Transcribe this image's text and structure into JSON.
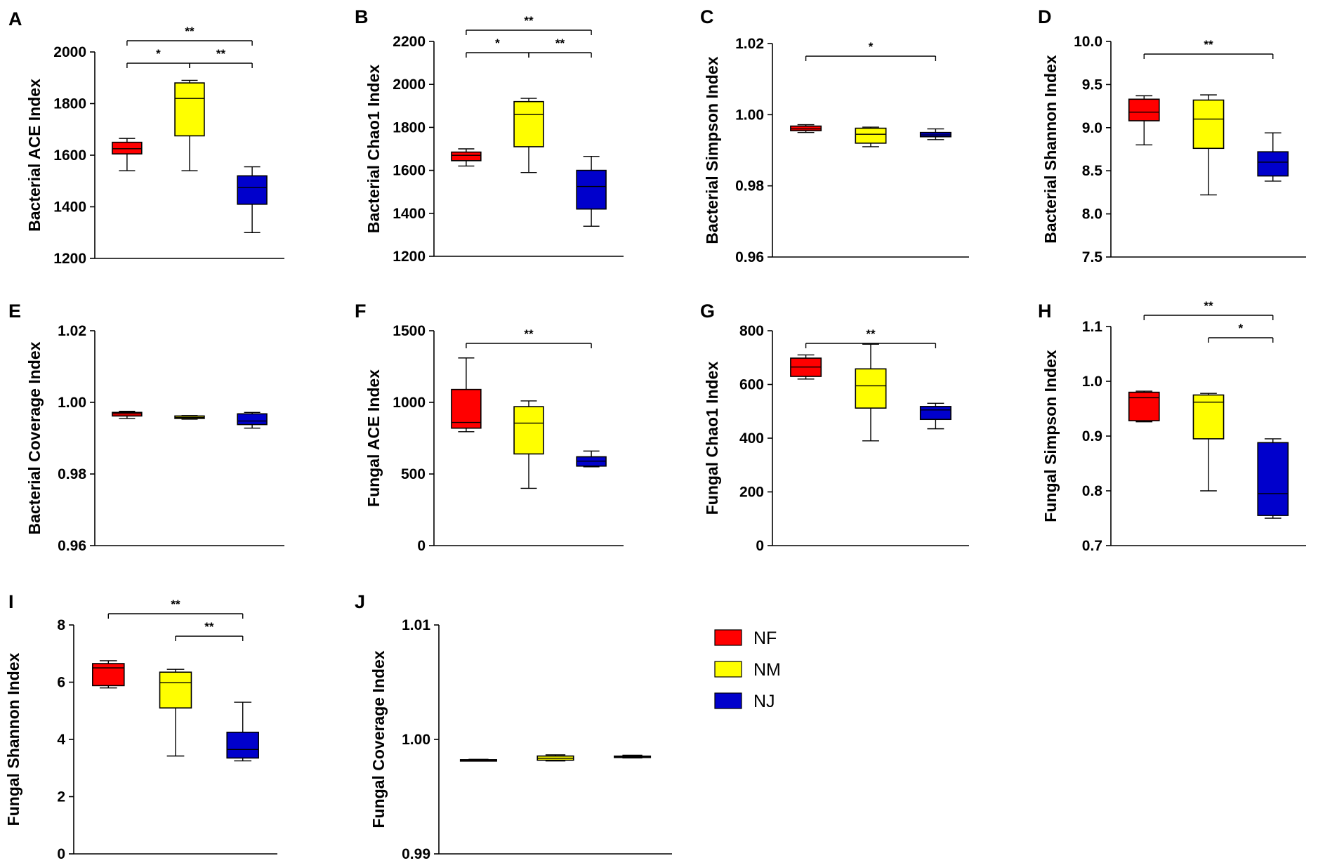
{
  "figure": {
    "legend": {
      "items": [
        {
          "label": "NF",
          "color": "#ff0000"
        },
        {
          "label": "NM",
          "color": "#ffff00"
        },
        {
          "label": "NJ",
          "color": "#0000cc"
        }
      ]
    }
  },
  "chart_data": [
    {
      "panel": "A",
      "type": "box",
      "ylabel": "Bacterial ACE Index",
      "ylim": [
        1200,
        2000
      ],
      "yticks": [
        "1200",
        "1400",
        "1600",
        "1800",
        "2000"
      ],
      "series": [
        {
          "name": "NF",
          "min": 1540,
          "q1": 1605,
          "median": 1625,
          "q3": 1650,
          "max": 1665
        },
        {
          "name": "NM",
          "min": 1540,
          "q1": 1675,
          "median": 1820,
          "q3": 1880,
          "max": 1890
        },
        {
          "name": "NJ",
          "min": 1300,
          "q1": 1410,
          "median": 1475,
          "q3": 1520,
          "max": 1555
        }
      ],
      "significance": [
        {
          "from": 0,
          "to": 1,
          "label": "*",
          "level": 0
        },
        {
          "from": 1,
          "to": 2,
          "label": "**",
          "level": 0
        },
        {
          "from": 0,
          "to": 2,
          "label": "**",
          "level": 1
        }
      ]
    },
    {
      "panel": "B",
      "type": "box",
      "ylabel": "Bacterial Chao1 Index",
      "ylim": [
        1200,
        2200
      ],
      "yticks": [
        "1200",
        "1400",
        "1600",
        "1800",
        "2000",
        "2200"
      ],
      "series": [
        {
          "name": "NF",
          "min": 1620,
          "q1": 1645,
          "median": 1670,
          "q3": 1685,
          "max": 1700
        },
        {
          "name": "NM",
          "min": 1590,
          "q1": 1710,
          "median": 1860,
          "q3": 1920,
          "max": 1935
        },
        {
          "name": "NJ",
          "min": 1340,
          "q1": 1420,
          "median": 1525,
          "q3": 1600,
          "max": 1665
        }
      ],
      "significance": [
        {
          "from": 0,
          "to": 1,
          "label": "*",
          "level": 0
        },
        {
          "from": 1,
          "to": 2,
          "label": "**",
          "level": 0
        },
        {
          "from": 0,
          "to": 2,
          "label": "**",
          "level": 1
        }
      ]
    },
    {
      "panel": "C",
      "type": "box",
      "ylabel": "Bacterial Simpson Index",
      "ylim": [
        0.96,
        1.02
      ],
      "yticks": [
        "0.96",
        "0.98",
        "1.00",
        "1.02"
      ],
      "series": [
        {
          "name": "NF",
          "min": 0.995,
          "q1": 0.9955,
          "median": 0.996,
          "q3": 0.9968,
          "max": 0.9972
        },
        {
          "name": "NM",
          "min": 0.991,
          "q1": 0.992,
          "median": 0.9945,
          "q3": 0.9962,
          "max": 0.9965
        },
        {
          "name": "NJ",
          "min": 0.993,
          "q1": 0.9938,
          "median": 0.9943,
          "q3": 0.995,
          "max": 0.996
        }
      ],
      "significance": [
        {
          "from": 0,
          "to": 2,
          "label": "*",
          "level": 0
        }
      ]
    },
    {
      "panel": "D",
      "type": "box",
      "ylabel": "Bacterial Shannon Index",
      "ylim": [
        7.5,
        10.0
      ],
      "yticks": [
        "7.5",
        "8.0",
        "8.5",
        "9.0",
        "9.5",
        "10.0"
      ],
      "series": [
        {
          "name": "NF",
          "min": 8.8,
          "q1": 9.08,
          "median": 9.18,
          "q3": 9.33,
          "max": 9.37
        },
        {
          "name": "NM",
          "min": 8.22,
          "q1": 8.76,
          "median": 9.1,
          "q3": 9.32,
          "max": 9.38
        },
        {
          "name": "NJ",
          "min": 8.38,
          "q1": 8.44,
          "median": 8.6,
          "q3": 8.72,
          "max": 8.94
        }
      ],
      "significance": [
        {
          "from": 0,
          "to": 2,
          "label": "**",
          "level": 0
        }
      ]
    },
    {
      "panel": "E",
      "type": "box",
      "ylabel": "Bacterial Coverage Index",
      "ylim": [
        0.96,
        1.02
      ],
      "yticks": [
        "0.96",
        "0.98",
        "1.00",
        "1.02"
      ],
      "series": [
        {
          "name": "NF",
          "min": 0.9955,
          "q1": 0.9962,
          "median": 0.9968,
          "q3": 0.9972,
          "max": 0.9975
        },
        {
          "name": "NM",
          "min": 0.9953,
          "q1": 0.9955,
          "median": 0.9958,
          "q3": 0.9962,
          "max": 0.9963
        },
        {
          "name": "NJ",
          "min": 0.9928,
          "q1": 0.9938,
          "median": 0.9948,
          "q3": 0.9968,
          "max": 0.9972
        }
      ],
      "significance": []
    },
    {
      "panel": "F",
      "type": "box",
      "ylabel": "Fungal ACE Index",
      "ylim": [
        0,
        1500
      ],
      "yticks": [
        "0",
        "500",
        "1000",
        "1500"
      ],
      "series": [
        {
          "name": "NF",
          "min": 795,
          "q1": 820,
          "median": 860,
          "q3": 1090,
          "max": 1310
        },
        {
          "name": "NM",
          "min": 400,
          "q1": 640,
          "median": 855,
          "q3": 970,
          "max": 1010
        },
        {
          "name": "NJ",
          "min": 550,
          "q1": 555,
          "median": 590,
          "q3": 620,
          "max": 660
        }
      ],
      "significance": [
        {
          "from": 0,
          "to": 2,
          "label": "**",
          "level": 0
        }
      ]
    },
    {
      "panel": "G",
      "type": "box",
      "ylabel": "Fungal Chao1 Index",
      "ylim": [
        0,
        800
      ],
      "yticks": [
        "0",
        "200",
        "400",
        "600",
        "800"
      ],
      "series": [
        {
          "name": "NF",
          "min": 620,
          "q1": 630,
          "median": 665,
          "q3": 698,
          "max": 710
        },
        {
          "name": "NM",
          "min": 390,
          "q1": 512,
          "median": 595,
          "q3": 658,
          "max": 750
        },
        {
          "name": "NJ",
          "min": 435,
          "q1": 470,
          "median": 505,
          "q3": 518,
          "max": 530
        }
      ],
      "significance": [
        {
          "from": 0,
          "to": 2,
          "label": "**",
          "level": 0
        }
      ]
    },
    {
      "panel": "H",
      "type": "box",
      "ylabel": "Fungal Simpson Index",
      "ylim": [
        0.7,
        1.1
      ],
      "yticks": [
        "0.7",
        "0.8",
        "0.9",
        "1.0",
        "1.1"
      ],
      "series": [
        {
          "name": "NF",
          "min": 0.926,
          "q1": 0.928,
          "median": 0.97,
          "q3": 0.98,
          "max": 0.982
        },
        {
          "name": "NM",
          "min": 0.8,
          "q1": 0.895,
          "median": 0.962,
          "q3": 0.975,
          "max": 0.978
        },
        {
          "name": "NJ",
          "min": 0.75,
          "q1": 0.755,
          "median": 0.795,
          "q3": 0.888,
          "max": 0.895
        }
      ],
      "significance": [
        {
          "from": 1,
          "to": 2,
          "label": "*",
          "level": 0
        },
        {
          "from": 0,
          "to": 2,
          "label": "**",
          "level": 1
        }
      ]
    },
    {
      "panel": "I",
      "type": "box",
      "ylabel": "Fungal Shannon Index",
      "ylim": [
        0,
        8
      ],
      "yticks": [
        "0",
        "2",
        "4",
        "6",
        "8"
      ],
      "series": [
        {
          "name": "NF",
          "min": 5.8,
          "q1": 5.88,
          "median": 6.5,
          "q3": 6.65,
          "max": 6.75
        },
        {
          "name": "NM",
          "min": 3.42,
          "q1": 5.1,
          "median": 5.98,
          "q3": 6.35,
          "max": 6.45
        },
        {
          "name": "NJ",
          "min": 3.25,
          "q1": 3.35,
          "median": 3.65,
          "q3": 4.25,
          "max": 5.3
        }
      ],
      "significance": [
        {
          "from": 1,
          "to": 2,
          "label": "**",
          "level": 0
        },
        {
          "from": 0,
          "to": 2,
          "label": "**",
          "level": 1
        }
      ]
    },
    {
      "panel": "J",
      "type": "box",
      "ylabel": "Fungal Coverage Index",
      "ylim": [
        0.99,
        1.01
      ],
      "yticks": [
        "0.99",
        "1.00",
        "1.01"
      ],
      "series": [
        {
          "name": "NF",
          "min": 0.99815,
          "q1": 0.99818,
          "median": 0.9982,
          "q3": 0.99823,
          "max": 0.99826
        },
        {
          "name": "NM",
          "min": 0.99812,
          "q1": 0.99818,
          "median": 0.99835,
          "q3": 0.99855,
          "max": 0.99865
        },
        {
          "name": "NJ",
          "min": 0.99838,
          "q1": 0.99843,
          "median": 0.99848,
          "q3": 0.99854,
          "max": 0.99862
        }
      ],
      "significance": []
    }
  ]
}
